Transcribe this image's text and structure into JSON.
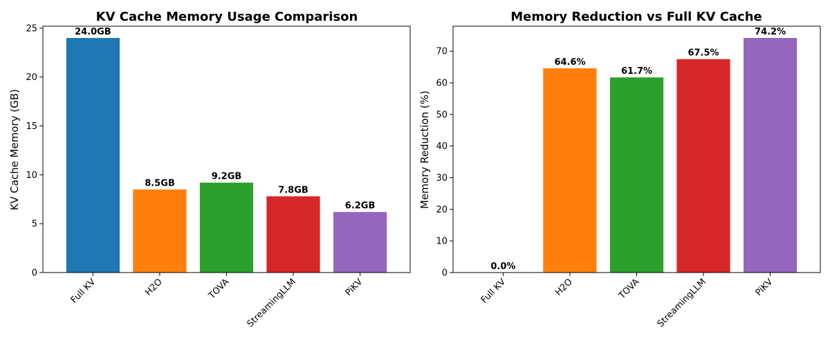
{
  "chart_data": [
    {
      "type": "bar",
      "title": "KV Cache Memory Usage Comparison",
      "xlabel": "",
      "ylabel": "KV Cache Memory (GB)",
      "categories": [
        "Full KV",
        "H2O",
        "TOVA",
        "StreamingLLM",
        "PiKV"
      ],
      "values": [
        24.0,
        8.5,
        9.2,
        7.8,
        6.2
      ],
      "data_labels": [
        "24.0GB",
        "8.5GB",
        "9.2GB",
        "7.8GB",
        "6.2GB"
      ],
      "colors": [
        "#1f77b4",
        "#ff7f0e",
        "#2ca02c",
        "#d62728",
        "#9467bd"
      ],
      "ylim": [
        0,
        25.2
      ],
      "yticks": [
        0,
        5,
        10,
        15,
        20,
        25
      ],
      "grid": false
    },
    {
      "type": "bar",
      "title": "Memory Reduction vs Full KV Cache",
      "xlabel": "",
      "ylabel": "Memory Reduction (%)",
      "categories": [
        "Full KV",
        "H2O",
        "TOVA",
        "StreamingLLM",
        "PiKV"
      ],
      "values": [
        0.0,
        64.6,
        61.7,
        67.5,
        74.2
      ],
      "data_labels": [
        "0.0%",
        "64.6%",
        "61.7%",
        "67.5%",
        "74.2%"
      ],
      "colors": [
        "#1f77b4",
        "#ff7f0e",
        "#2ca02c",
        "#d62728",
        "#9467bd"
      ],
      "ylim": [
        0,
        77.9
      ],
      "yticks": [
        0,
        10,
        20,
        30,
        40,
        50,
        60,
        70
      ],
      "grid": false
    }
  ]
}
